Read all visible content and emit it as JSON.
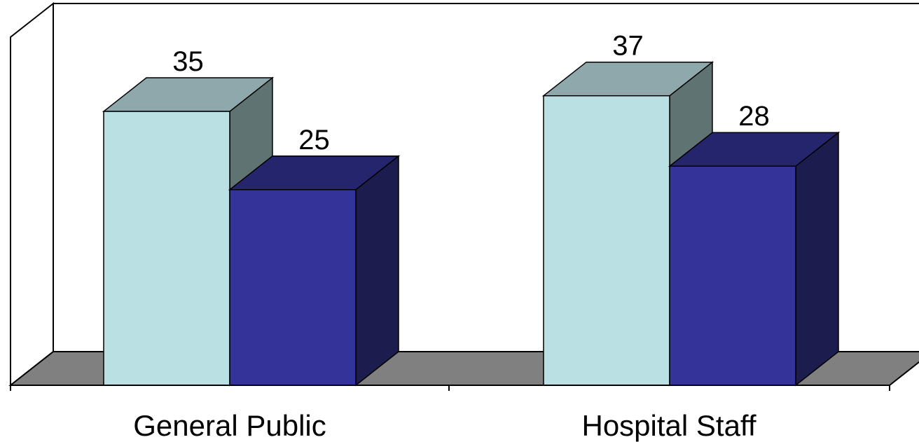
{
  "chart_data": {
    "type": "bar",
    "style": "3d-clustered-column",
    "categories": [
      "General Public",
      "Hospital Staff"
    ],
    "series": [
      {
        "values": [
          35,
          37
        ],
        "color": "#bbe0e3",
        "top_color": "#8ea8ac",
        "side_color": "#5f7373"
      },
      {
        "values": [
          25,
          28
        ],
        "color": "#333399",
        "top_color": "#25256e",
        "side_color": "#1c1c4e"
      }
    ],
    "data_labels": true,
    "ylim": [
      0,
      40
    ],
    "grid": false,
    "legend": "none",
    "title": "",
    "xlabel": "",
    "ylabel": "",
    "colors": {
      "floor": "#808080",
      "walls": "#ffffff",
      "axis": "#000000"
    }
  }
}
